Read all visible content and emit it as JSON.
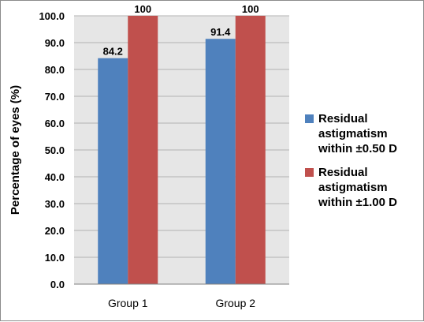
{
  "chart_data": {
    "type": "bar",
    "categories": [
      "Group 1",
      "Group 2"
    ],
    "series": [
      {
        "name": "Residual astigmatism within ±0.50 D",
        "values": [
          84.2,
          91.4
        ],
        "color": "#4f81bd",
        "labels": [
          "84.2",
          "91.4"
        ]
      },
      {
        "name": "Residual astigmatism within ±1.00 D",
        "values": [
          100,
          100
        ],
        "color": "#c0504d",
        "labels": [
          "100",
          "100"
        ]
      }
    ],
    "ylabel": "Percentage of eyes (%)",
    "xlabel": "",
    "ylim": [
      0,
      100
    ],
    "yticks": [
      "0.0",
      "10.0",
      "20.0",
      "30.0",
      "40.0",
      "50.0",
      "60.0",
      "70.0",
      "80.0",
      "90.0",
      "100.0"
    ],
    "grid": true,
    "legend_position": "right",
    "plot_background": "#e6e6e6"
  }
}
